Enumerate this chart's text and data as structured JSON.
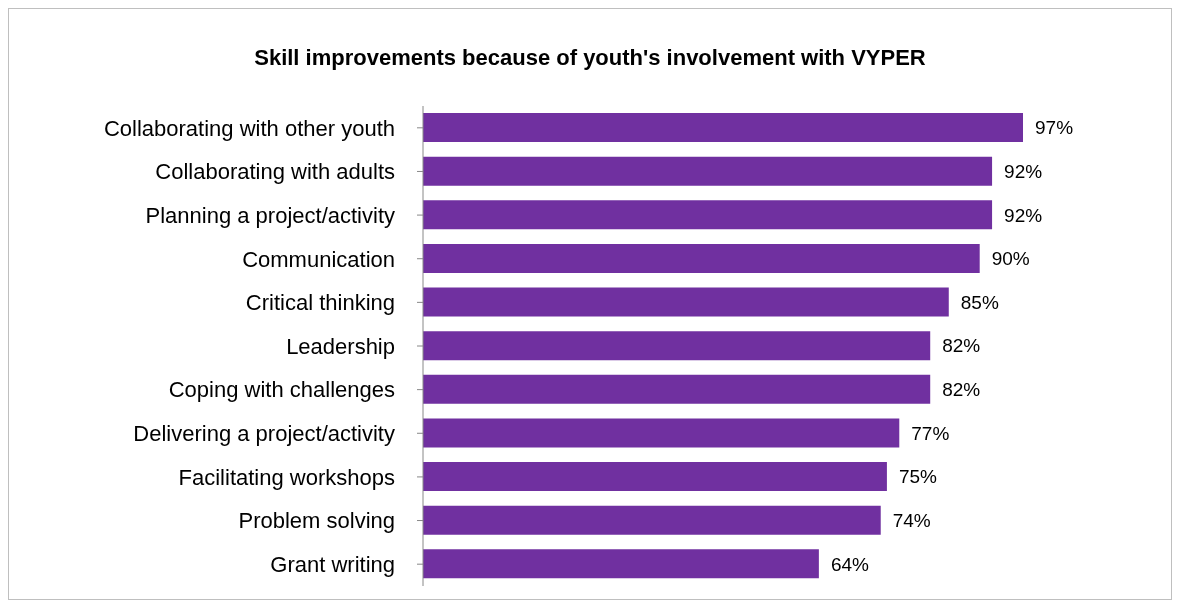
{
  "chart_data": {
    "type": "bar",
    "orientation": "horizontal",
    "title": "Skill improvements because of youth's involvement with VYPER",
    "categories": [
      "Collaborating with other youth",
      "Collaborating with adults",
      "Planning a project/activity",
      "Communication",
      "Critical thinking",
      "Leadership",
      "Coping with challenges",
      "Delivering a project/activity",
      "Facilitating workshops",
      "Problem solving",
      "Grant writing"
    ],
    "values": [
      97,
      92,
      92,
      90,
      85,
      82,
      82,
      77,
      75,
      74,
      64
    ],
    "value_labels": [
      "97%",
      "92%",
      "92%",
      "90%",
      "85%",
      "82%",
      "82%",
      "77%",
      "75%",
      "74%",
      "64%"
    ],
    "color": "#7030a0",
    "tick_labels": "y",
    "grid": false
  }
}
